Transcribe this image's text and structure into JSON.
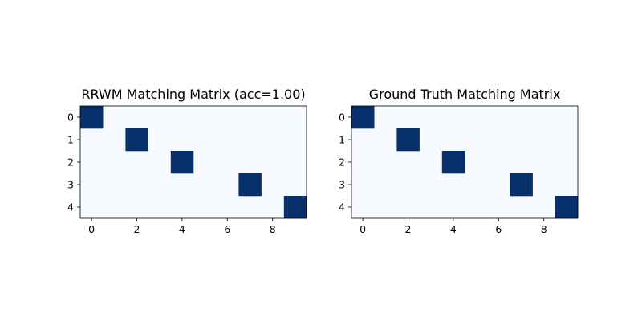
{
  "colors": {
    "background_cell": "#f7fbff",
    "match_cell": "#08306b",
    "axes": "#000000"
  },
  "chart_data": [
    {
      "type": "heatmap",
      "title": "RRWM Matching Matrix (acc=1.00)",
      "rows": 5,
      "cols": 10,
      "colormap": "Blues",
      "xticks": [
        0,
        2,
        4,
        6,
        8
      ],
      "yticks": [
        0,
        1,
        2,
        3,
        4
      ],
      "matches": [
        [
          0,
          0
        ],
        [
          1,
          2
        ],
        [
          2,
          4
        ],
        [
          3,
          7
        ],
        [
          4,
          9
        ]
      ]
    },
    {
      "type": "heatmap",
      "title": "Ground Truth Matching Matrix",
      "rows": 5,
      "cols": 10,
      "colormap": "Blues",
      "xticks": [
        0,
        2,
        4,
        6,
        8
      ],
      "yticks": [
        0,
        1,
        2,
        3,
        4
      ],
      "matches": [
        [
          0,
          0
        ],
        [
          1,
          2
        ],
        [
          2,
          4
        ],
        [
          3,
          7
        ],
        [
          4,
          9
        ]
      ]
    }
  ]
}
